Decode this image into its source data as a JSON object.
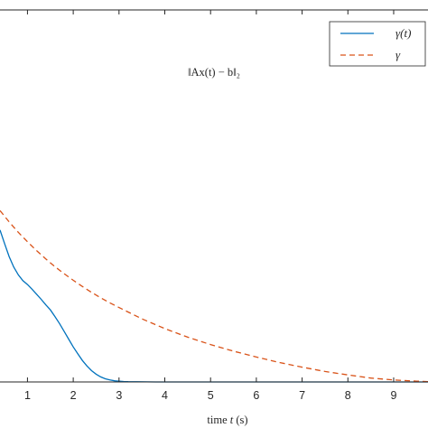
{
  "chart_data": {
    "type": "line",
    "xlabel_prefix": "time ",
    "xlabel_var": "t",
    "xlabel_suffix": " (s)",
    "annotation": "‖Ax(t) − b‖₂",
    "xlim": [
      0.4,
      9.75
    ],
    "ylim": [
      0,
      9.55
    ],
    "xticks": [
      1,
      2,
      3,
      4,
      5,
      6,
      7,
      8,
      9
    ],
    "legend_placement": "top-right",
    "grid": false,
    "series": [
      {
        "name": "γ(t)",
        "color": "#0072BD",
        "style": "solid",
        "x": [
          0.4,
          0.5,
          0.6,
          0.7,
          0.8,
          0.9,
          1.0,
          1.1,
          1.2,
          1.3,
          1.4,
          1.5,
          1.6,
          1.7,
          1.8,
          1.9,
          2.0,
          2.1,
          2.2,
          2.3,
          2.4,
          2.5,
          2.6,
          2.7,
          2.8,
          2.9,
          3.0,
          3.1,
          3.2,
          3.4,
          3.6,
          3.8,
          4.0,
          5.0,
          6.0,
          7.0,
          8.0,
          9.0,
          9.75
        ],
        "y": [
          3.9,
          3.55,
          3.22,
          2.95,
          2.75,
          2.6,
          2.5,
          2.38,
          2.25,
          2.12,
          1.98,
          1.85,
          1.68,
          1.5,
          1.3,
          1.1,
          0.9,
          0.72,
          0.55,
          0.41,
          0.29,
          0.2,
          0.13,
          0.08,
          0.05,
          0.03,
          0.02,
          0.012,
          0.008,
          0.004,
          0.002,
          0.001,
          0,
          0,
          0,
          0,
          0,
          0,
          0
        ]
      },
      {
        "name": "γ",
        "color": "#D95319",
        "style": "dashed",
        "x": [
          0.4,
          0.6,
          0.8,
          1.0,
          1.2,
          1.4,
          1.6,
          1.8,
          2.0,
          2.2,
          2.4,
          2.6,
          2.8,
          3.0,
          3.5,
          4.0,
          4.5,
          5.0,
          5.5,
          6.0,
          6.5,
          7.0,
          7.5,
          8.0,
          8.5,
          9.0,
          9.5,
          9.75
        ],
        "y": [
          4.4,
          4.11,
          3.84,
          3.6,
          3.37,
          3.16,
          2.96,
          2.78,
          2.61,
          2.45,
          2.3,
          2.16,
          2.03,
          1.91,
          1.62,
          1.37,
          1.15,
          0.96,
          0.79,
          0.64,
          0.5,
          0.38,
          0.27,
          0.18,
          0.1,
          0.05,
          0.02,
          0.01
        ]
      }
    ]
  }
}
